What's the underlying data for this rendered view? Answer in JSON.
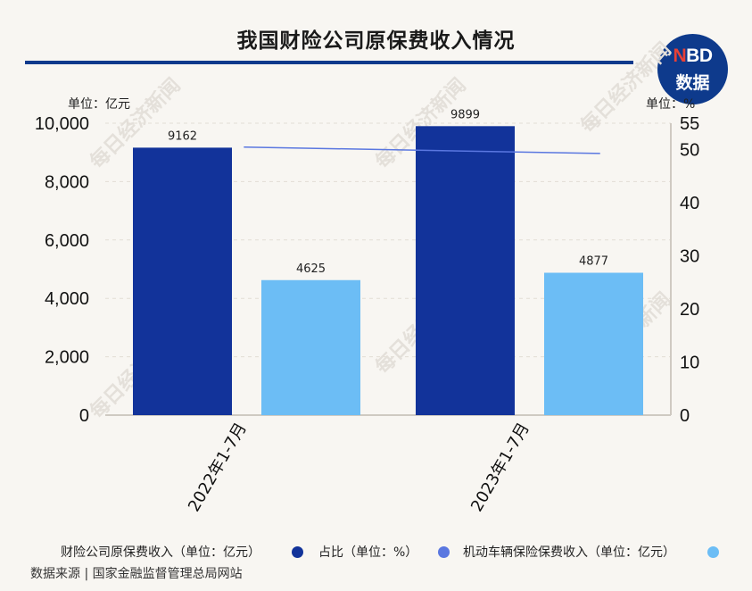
{
  "title": "我国财险公司原保费收入情况",
  "logo": {
    "brand": "NBD",
    "brand_red": "N",
    "brand_rest": "BD",
    "sub": "数据"
  },
  "watermark": "每日经济新闻",
  "units": {
    "left": "单位：亿元",
    "right": "单位：%"
  },
  "legend": [
    {
      "label": "财险公司原保费收入（单位：亿元）",
      "color": "#12339a"
    },
    {
      "label": "占比（单位：%）",
      "color": "#5a77e0"
    },
    {
      "label": "机动车辆保险保费收入（单位：亿元）",
      "color": "#6cbdf5"
    }
  ],
  "source": "数据来源 | 国家金融监督管理总局网站",
  "chart_data": {
    "type": "bar",
    "categories": [
      "2022年1-7月",
      "2023年1-7月"
    ],
    "series": [
      {
        "name": "财险公司原保费收入（单位：亿元）",
        "values": [
          9162,
          9899
        ],
        "color": "#12339a",
        "axis": "left",
        "kind": "bar"
      },
      {
        "name": "机动车辆保险保费收入（单位：亿元）",
        "values": [
          4625,
          4877
        ],
        "color": "#6cbdf5",
        "axis": "left",
        "kind": "bar"
      },
      {
        "name": "占比（单位：%）",
        "values": [
          50.5,
          49.3
        ],
        "color": "#5a77e0",
        "axis": "right",
        "kind": "line"
      }
    ],
    "left_axis": {
      "min": 0,
      "max": 10000,
      "ticks": [
        "0",
        "2,000",
        "4,000",
        "6,000",
        "8,000",
        "10,000"
      ],
      "tick_values": [
        0,
        2000,
        4000,
        6000,
        8000,
        10000
      ]
    },
    "right_axis": {
      "min": 0,
      "max": 55,
      "ticks": [
        "0",
        "10",
        "20",
        "30",
        "40",
        "50",
        "55"
      ],
      "tick_values": [
        0,
        10,
        20,
        30,
        40,
        50,
        55
      ]
    },
    "bar_labels": [
      [
        "9162",
        "9899"
      ],
      [
        "4625",
        "4877"
      ]
    ],
    "grid": true,
    "legend_position": "bottom"
  }
}
